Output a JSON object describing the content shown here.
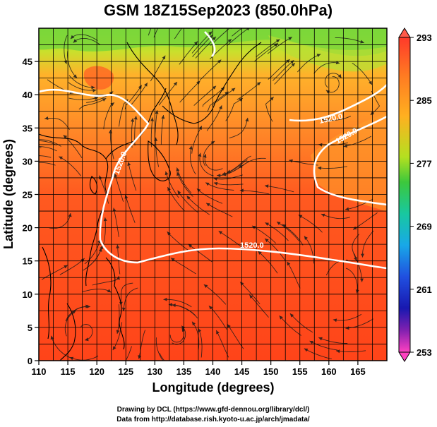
{
  "title": "GSM 18Z15Sep2023 (850.0hPa)",
  "xlabel": "Longitude (degrees)",
  "ylabel": "Latitude  (degrees)",
  "x_ticks": [
    "110",
    "115",
    "120",
    "125",
    "130",
    "135",
    "140",
    "145",
    "150",
    "155",
    "160",
    "165"
  ],
  "y_ticks": [
    "0",
    "5",
    "10",
    "15",
    "20",
    "25",
    "30",
    "35",
    "40",
    "45"
  ],
  "colorbar_ticks": [
    "293",
    "285",
    "277",
    "269",
    "261",
    "253"
  ],
  "contour_labels": [
    "1520.0",
    "1520.0",
    "1520.0",
    "1520.0"
  ],
  "credits": {
    "line1": "Drawing by DCL (https://www.gfd-dennou.org/library/dcl/)",
    "line2": "Data from http://database.rish.kyoto-u.ac.jp/arch/jmadata/"
  },
  "chart_data": {
    "type": "heatmap",
    "field": "temperature with wind streamlines and geopotential height contour",
    "xlim": [
      110,
      170
    ],
    "ylim": [
      0,
      50
    ],
    "colorbar_range": [
      253,
      293
    ],
    "colors": {
      "warm": "#ff4a1e",
      "mid": "#ff9a28",
      "cool": "#a0e030",
      "cold": "#40c040",
      "contour": "#ffffff",
      "coast": "#000000"
    },
    "grid": true,
    "contour_level": 1520.0
  }
}
